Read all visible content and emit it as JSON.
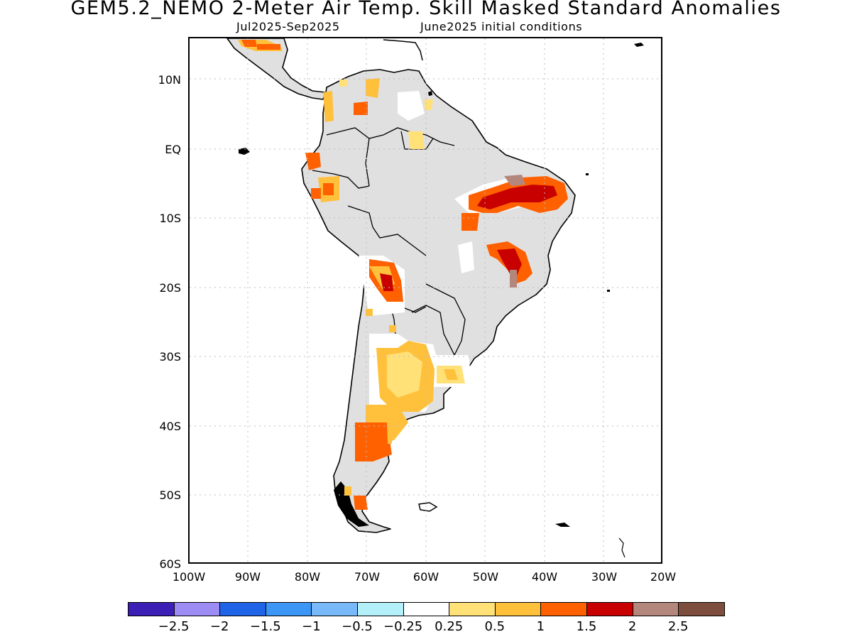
{
  "header": {
    "title": "GEM5.2_NEMO 2-Meter Air Temp. Skill Masked Standard Anomalies",
    "subtitle_left": "Jul2025-Sep2025",
    "subtitle_right": "June2025 initial conditions"
  },
  "axes": {
    "lat_labels": [
      "10N",
      "EQ",
      "10S",
      "20S",
      "30S",
      "40S",
      "50S",
      "60S"
    ],
    "lon_labels": [
      "100W",
      "90W",
      "80W",
      "70W",
      "60W",
      "50W",
      "40W",
      "30W",
      "20W"
    ]
  },
  "colorbar": {
    "colors": [
      "#3c1fb4",
      "#9e8cf5",
      "#1f64e6",
      "#3c96f5",
      "#78b9fa",
      "#b4f0fa",
      "#ffffff",
      "#ffe178",
      "#ffc03c",
      "#ff6000",
      "#c80000",
      "#b4877d",
      "#7d4e3e"
    ],
    "labels": [
      "-2.5",
      "-2",
      "-1.5",
      "-1",
      "-0.5",
      "-0.25",
      "0.25",
      "0.5",
      "1",
      "1.5",
      "2",
      "2.5"
    ]
  },
  "map_colors": {
    "land_masked": "#e0e0e0",
    "coast": "#000000",
    "grid": "#bdbdbd"
  },
  "chart_data": {
    "type": "map",
    "region": "South America",
    "projection": "lat-lon",
    "lon_range": [
      -100,
      -20
    ],
    "lat_range": [
      -60,
      16
    ],
    "gridlines": "dotted, every 10 degrees",
    "variable": "2-Meter Air Temp. standard anomaly (skill masked)",
    "anomaly_regions": [
      {
        "area": "northeastern Brazil",
        "category": "1.5 to 2.5"
      },
      {
        "area": "eastern Brazil",
        "category": "1.5 to 2.5"
      },
      {
        "area": "northern Chile / Bolivia",
        "category": "1 to 2"
      },
      {
        "area": "western Argentina",
        "category": "0.25 to 1"
      },
      {
        "area": "Patagonia (north)",
        "category": "1 to 1.5"
      },
      {
        "area": "Ecuador / Colombia",
        "category": "1 to 1.5"
      },
      {
        "area": "Central America",
        "category": "0.5 to 1.5"
      },
      {
        "area": "Uruguay",
        "category": "0.25 to 1"
      }
    ]
  }
}
